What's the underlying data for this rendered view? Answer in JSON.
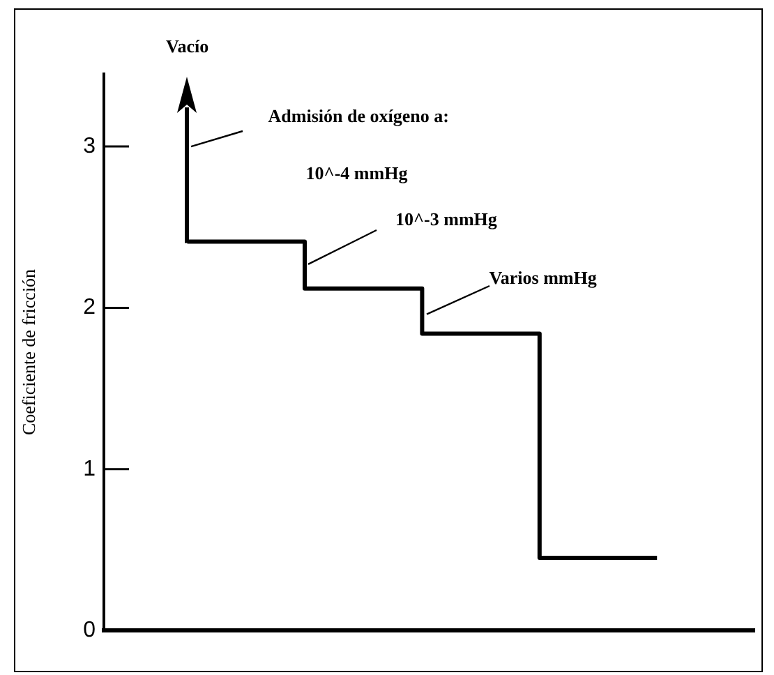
{
  "chart_data": {
    "type": "step",
    "ylabel": "Coeficiente de fricción",
    "categories": [
      null,
      null,
      null,
      null,
      null
    ],
    "series": [
      {
        "color": "#000000",
        "values": [
          2.41,
          2.12,
          1.84,
          0.45,
          0.45
        ]
      }
    ],
    "ylim": [
      0,
      3.45
    ],
    "yticks": [
      0,
      1,
      2,
      3
    ],
    "tick_labels": "y",
    "grid": false,
    "legend": false,
    "marker": "none",
    "line_style": "solid",
    "annotations": [
      "Vacío",
      "Admisión de oxígeno a:",
      "10^-4 mmHg",
      "10^-3 mmHg",
      "Varios mmHg"
    ]
  }
}
